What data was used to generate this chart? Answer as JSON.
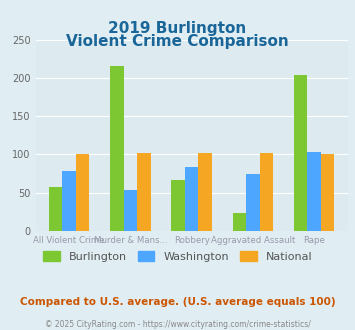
{
  "title_line1": "2019 Burlington",
  "title_line2": "Violent Crime Comparison",
  "categories": [
    "All Violent Crime",
    "Murder & Mans...",
    "Robbery",
    "Aggravated Assault",
    "Rape"
  ],
  "series": {
    "Burlington": [
      57,
      215,
      66,
      23,
      204
    ],
    "Washington": [
      79,
      53,
      84,
      74,
      103
    ],
    "National": [
      101,
      102,
      102,
      102,
      101
    ]
  },
  "colors": {
    "Burlington": "#7dc832",
    "Washington": "#4da6ff",
    "National": "#f5a623"
  },
  "ylim": [
    0,
    250
  ],
  "yticks": [
    0,
    50,
    100,
    150,
    200,
    250
  ],
  "background_color": "#e0edf3",
  "plot_bg_color": "#ddeaf0",
  "title_color": "#1a6699",
  "xlabel_color": "#9999aa",
  "legend_label_color": "#555555",
  "footer_text": "Compared to U.S. average. (U.S. average equals 100)",
  "copyright_text": "© 2025 CityRating.com - https://www.cityrating.com/crime-statistics/",
  "footer_color": "#cc5500",
  "copyright_color": "#888888"
}
